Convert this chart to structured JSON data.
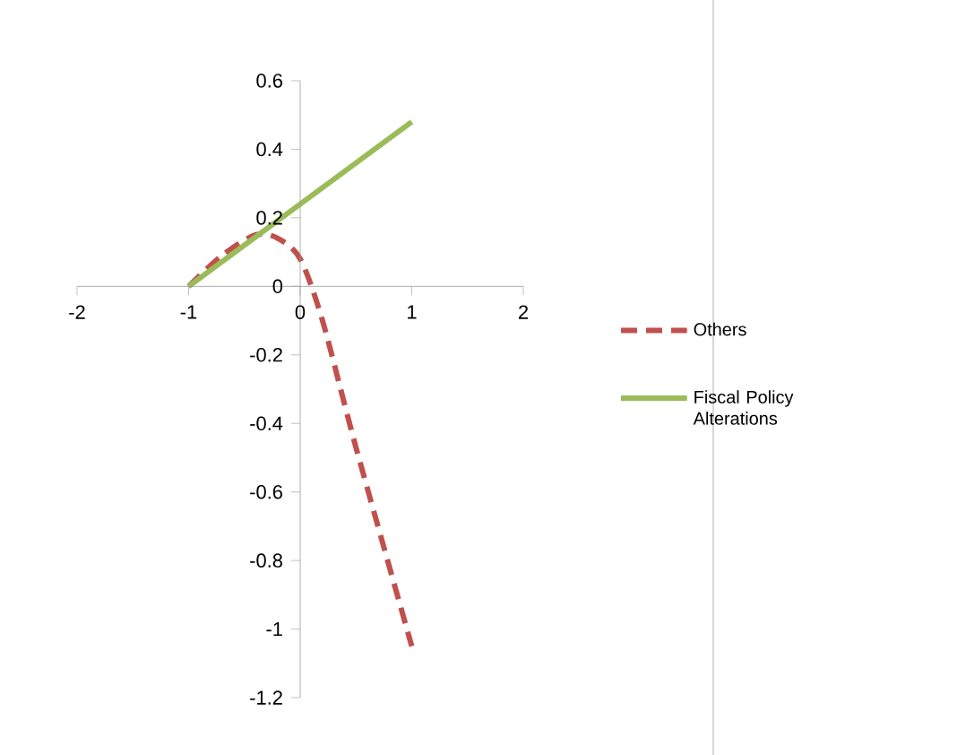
{
  "chart_data": {
    "type": "line",
    "series": [
      {
        "name": "Others",
        "color": "#c0504d",
        "line_style": "dashed",
        "x": [
          -1,
          -0.7,
          -0.4,
          -0.2,
          0,
          0.2,
          0.5,
          1
        ],
        "values": [
          0,
          0.09,
          0.15,
          0.14,
          0.08,
          -0.1,
          -0.47,
          -1.05
        ]
      },
      {
        "name": "Fiscal Policy Alterations",
        "color": "#9bbb59",
        "line_style": "solid",
        "x": [
          -1,
          0,
          1
        ],
        "values": [
          0,
          0.24,
          0.48
        ]
      }
    ],
    "xlim": [
      -2,
      2
    ],
    "ylim": [
      -1.2,
      0.6
    ],
    "xticks": [
      -2,
      -1,
      0,
      1,
      2
    ],
    "yticks": [
      -1.2,
      -1,
      -0.8,
      -0.6,
      -0.4,
      -0.2,
      0,
      0.2,
      0.4,
      0.6
    ],
    "grid": false,
    "legend": "right"
  }
}
